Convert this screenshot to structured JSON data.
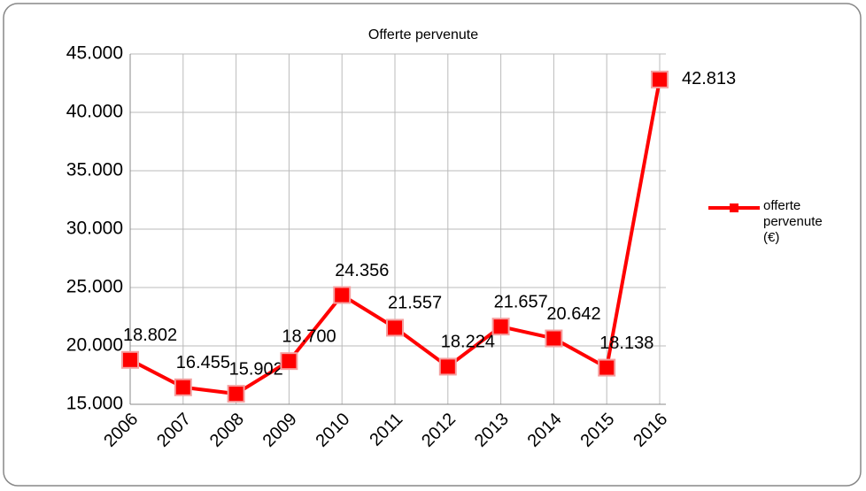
{
  "chart_data": {
    "type": "line",
    "title": "Offerte pervenute",
    "categories": [
      "2006",
      "2007",
      "2008",
      "2009",
      "2010",
      "2011",
      "2012",
      "2013",
      "2014",
      "2015",
      "2016"
    ],
    "series": [
      {
        "name": "offerte pervenute (€)",
        "color": "#ff0000",
        "values": [
          18802,
          16455,
          15902,
          18700,
          24356,
          21557,
          18224,
          21657,
          20642,
          18138,
          42813
        ],
        "value_labels": [
          "18.802",
          "16.455",
          "15.902",
          "18.700",
          "24.356",
          "21.557",
          "18.224",
          "21.657",
          "20.642",
          "18.138",
          "42.813"
        ]
      }
    ],
    "ylim": [
      15000,
      45000
    ],
    "yticks": [
      {
        "value": 15000,
        "label": "15.000"
      },
      {
        "value": 20000,
        "label": "20.000"
      },
      {
        "value": 25000,
        "label": "25.000"
      },
      {
        "value": 30000,
        "label": "30.000"
      },
      {
        "value": 35000,
        "label": "35.000"
      },
      {
        "value": 40000,
        "label": "40.000"
      },
      {
        "value": 45000,
        "label": "45.000"
      }
    ],
    "grid": true,
    "legend": "right"
  }
}
